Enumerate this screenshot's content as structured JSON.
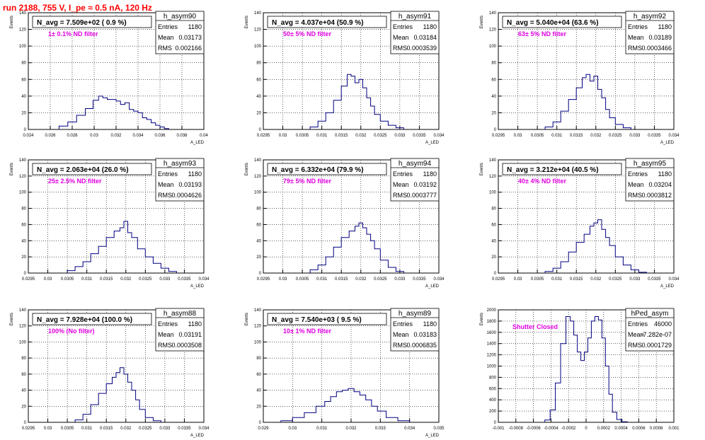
{
  "page_title": "run 2188,   755 V, I_pe ≈ 0.5 nA, 120 Hz",
  "colors": {
    "hist": "#000080",
    "label": "#e000e0",
    "title": "#ff0000",
    "grid": "#000000"
  },
  "chart_data": [
    {
      "type": "histogram",
      "name": "h_asym90",
      "navg_text": "N_avg = 7.509e+02 ( 0.9 %)",
      "annotation": "1± 0.1% ND filter",
      "stats": {
        "entries": "1180",
        "mean": "0.03173",
        "rms": "0.002166"
      },
      "xlabel": "A_LED",
      "ylabel": "Events",
      "xlim": [
        0.024,
        0.04
      ],
      "ylim": [
        0,
        140
      ],
      "xticks": [
        "0.024",
        "0.026",
        "0.028",
        "0.03",
        "0.032",
        "0.034",
        "0.036",
        "0.038",
        "0.04"
      ],
      "yticks": [
        "0",
        "20",
        "40",
        "60",
        "80",
        "100",
        "120",
        "140"
      ],
      "x": [
        0.0272,
        0.028,
        0.0288,
        0.0296,
        0.0302,
        0.0306,
        0.031,
        0.0314,
        0.0318,
        0.0322,
        0.0326,
        0.033,
        0.0334,
        0.0338,
        0.0342,
        0.0346,
        0.035,
        0.0354,
        0.0358,
        0.0362,
        0.0366
      ],
      "values": [
        4,
        9,
        17,
        25,
        35,
        40,
        38,
        36,
        36,
        34,
        30,
        32,
        24,
        22,
        20,
        14,
        12,
        8,
        5,
        3,
        1
      ]
    },
    {
      "type": "histogram",
      "name": "h_asym91",
      "navg_text": "N_avg = 4.037e+04 (50.9 %)",
      "annotation": "50± 5% ND filter",
      "stats": {
        "entries": "1180",
        "mean": "0.03184",
        "rms": "0.0003539"
      },
      "xlabel": "A_LED",
      "ylabel": "Events",
      "xlim": [
        0.0295,
        0.034
      ],
      "ylim": [
        0,
        140
      ],
      "xticks": [
        "0.0295",
        "0.03",
        "0.0305",
        "0.031",
        "0.0315",
        "0.032",
        "0.0325",
        "0.033",
        "0.0335",
        "0.034"
      ],
      "yticks": [
        "0",
        "20",
        "40",
        "60",
        "80",
        "100",
        "120",
        "140"
      ],
      "x": [
        0.0308,
        0.031,
        0.0312,
        0.0314,
        0.0316,
        0.0317,
        0.0318,
        0.0319,
        0.032,
        0.0321,
        0.0322,
        0.0323,
        0.0324,
        0.0326,
        0.0328,
        0.033
      ],
      "values": [
        3,
        10,
        20,
        35,
        52,
        66,
        64,
        56,
        60,
        50,
        38,
        28,
        18,
        10,
        5,
        2
      ]
    },
    {
      "type": "histogram",
      "name": "h_asym92",
      "navg_text": "N_avg = 5.040e+04 (63.6 %)",
      "annotation": "63± 5% ND filter",
      "stats": {
        "entries": "1180",
        "mean": "0.03189",
        "rms": "0.0003466"
      },
      "xlabel": "A_LED",
      "ylabel": "Events",
      "xlim": [
        0.0295,
        0.034
      ],
      "ylim": [
        0,
        140
      ],
      "xticks": [
        "0.0295",
        "0.03",
        "0.0305",
        "0.031",
        "0.0315",
        "0.032",
        "0.0325",
        "0.033",
        "0.0335",
        "0.034"
      ],
      "yticks": [
        "0",
        "20",
        "40",
        "60",
        "80",
        "100",
        "120",
        "140"
      ],
      "x": [
        0.0308,
        0.031,
        0.0312,
        0.0314,
        0.0316,
        0.0317,
        0.0318,
        0.0319,
        0.032,
        0.0321,
        0.0322,
        0.0323,
        0.0324,
        0.0326,
        0.0328
      ],
      "values": [
        3,
        9,
        22,
        36,
        50,
        62,
        66,
        58,
        64,
        48,
        38,
        24,
        14,
        6,
        2
      ]
    },
    {
      "type": "histogram",
      "name": "h_asym93",
      "navg_text": "N_avg = 2.063e+04 (26.0 %)",
      "annotation": "25± 2.5% ND filter",
      "stats": {
        "entries": "1180",
        "mean": "0.03193",
        "rms": "0.0004626"
      },
      "xlabel": "A_LED",
      "ylabel": "Events",
      "xlim": [
        0.0295,
        0.034
      ],
      "ylim": [
        0,
        140
      ],
      "xticks": [
        "0.0295",
        "0.03",
        "0.0305",
        "0.031",
        "0.0315",
        "0.032",
        "0.0325",
        "0.033",
        "0.0335",
        "0.034"
      ],
      "yticks": [
        "0",
        "20",
        "40",
        "60",
        "80",
        "100",
        "120",
        "140"
      ],
      "x": [
        0.0306,
        0.0308,
        0.031,
        0.0312,
        0.0314,
        0.0316,
        0.0318,
        0.0319,
        0.032,
        0.0321,
        0.0322,
        0.0324,
        0.0326,
        0.0328,
        0.033,
        0.0332
      ],
      "values": [
        3,
        8,
        14,
        24,
        33,
        44,
        52,
        56,
        64,
        50,
        44,
        30,
        20,
        12,
        6,
        2
      ]
    },
    {
      "type": "histogram",
      "name": "h_asym94",
      "navg_text": "N_avg = 6.332e+04 (79.9 %)",
      "annotation": "79± 5% ND filter",
      "stats": {
        "entries": "1180",
        "mean": "0.03192",
        "rms": "0.0003777"
      },
      "xlabel": "A_LED",
      "ylabel": "Events",
      "xlim": [
        0.0295,
        0.034
      ],
      "ylim": [
        0,
        140
      ],
      "xticks": [
        "0.0295",
        "0.03",
        "0.0305",
        "0.031",
        "0.0315",
        "0.032",
        "0.0325",
        "0.033",
        "0.0335",
        "0.034"
      ],
      "yticks": [
        "0",
        "20",
        "40",
        "60",
        "80",
        "100",
        "120",
        "140"
      ],
      "x": [
        0.0308,
        0.031,
        0.0312,
        0.0314,
        0.0316,
        0.0318,
        0.0319,
        0.032,
        0.0321,
        0.0322,
        0.0323,
        0.0324,
        0.0326,
        0.0328,
        0.033
      ],
      "values": [
        4,
        10,
        20,
        32,
        44,
        52,
        58,
        62,
        56,
        48,
        40,
        30,
        16,
        7,
        2
      ]
    },
    {
      "type": "histogram",
      "name": "h_asym95",
      "navg_text": "N_avg = 3.212e+04 (40.5 %)",
      "annotation": "40± 4% ND filter",
      "stats": {
        "entries": "1180",
        "mean": "0.03204",
        "rms": "0.0003812"
      },
      "xlabel": "A_LED",
      "ylabel": "Events",
      "xlim": [
        0.0295,
        0.034
      ],
      "ylim": [
        0,
        140
      ],
      "xticks": [
        "0.0295",
        "0.03",
        "0.0305",
        "0.031",
        "0.0315",
        "0.032",
        "0.0325",
        "0.033",
        "0.0335",
        "0.034"
      ],
      "yticks": [
        "0",
        "20",
        "40",
        "60",
        "80",
        "100",
        "120",
        "140"
      ],
      "x": [
        0.0308,
        0.031,
        0.0312,
        0.0314,
        0.0316,
        0.0318,
        0.0319,
        0.032,
        0.0321,
        0.0322,
        0.0323,
        0.0324,
        0.0326,
        0.0328,
        0.033,
        0.0332
      ],
      "values": [
        2,
        6,
        14,
        26,
        38,
        48,
        58,
        62,
        66,
        54,
        44,
        34,
        20,
        10,
        4,
        1
      ]
    },
    {
      "type": "histogram",
      "name": "h_asym88",
      "navg_text": "N_avg = 7.928e+04 (100.0 %)",
      "annotation": "100% (No filter)",
      "stats": {
        "entries": "1180",
        "mean": "0.03191",
        "rms": "0.0003508"
      },
      "xlabel": "A_LED",
      "ylabel": "Events",
      "xlim": [
        0.0295,
        0.034
      ],
      "ylim": [
        0,
        140
      ],
      "xticks": [
        "0.0295",
        "0.03",
        "0.0305",
        "0.031",
        "0.0315",
        "0.032",
        "0.0325",
        "0.033",
        "0.0335",
        "0.034"
      ],
      "yticks": [
        "0",
        "20",
        "40",
        "60",
        "80",
        "100",
        "120",
        "140"
      ],
      "x": [
        0.0308,
        0.031,
        0.0312,
        0.0314,
        0.0316,
        0.0317,
        0.0318,
        0.0319,
        0.032,
        0.0321,
        0.0322,
        0.0323,
        0.0324,
        0.0326,
        0.0328
      ],
      "values": [
        3,
        10,
        22,
        36,
        48,
        56,
        62,
        68,
        60,
        50,
        40,
        28,
        16,
        6,
        2
      ]
    },
    {
      "type": "histogram",
      "name": "h_asym89",
      "navg_text": "N_avg = 7.540e+03 ( 9.5 %)",
      "annotation": "10± 1% ND filter",
      "stats": {
        "entries": "1180",
        "mean": "0.03183",
        "rms": "0.0006835"
      },
      "xlabel": "A_LED",
      "ylabel": "Events",
      "xlim": [
        0.029,
        0.035
      ],
      "ylim": [
        0,
        140
      ],
      "xticks": [
        "0.029",
        "0.03",
        "0.031",
        "0.032",
        "0.033",
        "0.034",
        "0.035"
      ],
      "yticks": [
        "0",
        "20",
        "40",
        "60",
        "80",
        "100",
        "120",
        "140"
      ],
      "x": [
        0.0298,
        0.0302,
        0.0306,
        0.031,
        0.0312,
        0.0314,
        0.0316,
        0.0318,
        0.032,
        0.0322,
        0.0324,
        0.0326,
        0.0328,
        0.033,
        0.0334,
        0.0338
      ],
      "values": [
        2,
        6,
        12,
        20,
        26,
        32,
        38,
        40,
        42,
        38,
        34,
        28,
        20,
        14,
        6,
        2
      ]
    },
    {
      "type": "histogram",
      "name": "hPed_asym",
      "navg_text": "",
      "annotation": "Shutter Closed",
      "stats": {
        "entries": "46000",
        "mean": "-7.282e-07",
        "rms": "0.0001729"
      },
      "xlabel": "",
      "ylabel": "Events",
      "xlim": [
        -0.001,
        0.001
      ],
      "ylim": [
        0,
        2000
      ],
      "xticks": [
        "-0.001",
        "-0.0008",
        "-0.0006",
        "-0.0004",
        "-0.0002",
        "0",
        "0.0002",
        "0.0004",
        "0.0006",
        "0.0008",
        "0.001"
      ],
      "yticks": [
        "0",
        "200",
        "400",
        "600",
        "800",
        "1000",
        "1200",
        "1400",
        "1600",
        "1800",
        "2000"
      ],
      "x": [
        -0.00044,
        -0.00038,
        -0.00032,
        -0.00026,
        -0.0002,
        -0.00016,
        -0.00012,
        -8e-05,
        -4e-05,
        0.0,
        4e-05,
        8e-05,
        0.00012,
        0.00016,
        0.0002,
        0.00024,
        0.00028,
        0.00032,
        0.00038,
        0.00044
      ],
      "values": [
        40,
        220,
        700,
        1400,
        1880,
        1800,
        1550,
        1250,
        1100,
        1250,
        1500,
        1800,
        1880,
        1820,
        1500,
        1000,
        500,
        180,
        50,
        10
      ]
    }
  ]
}
